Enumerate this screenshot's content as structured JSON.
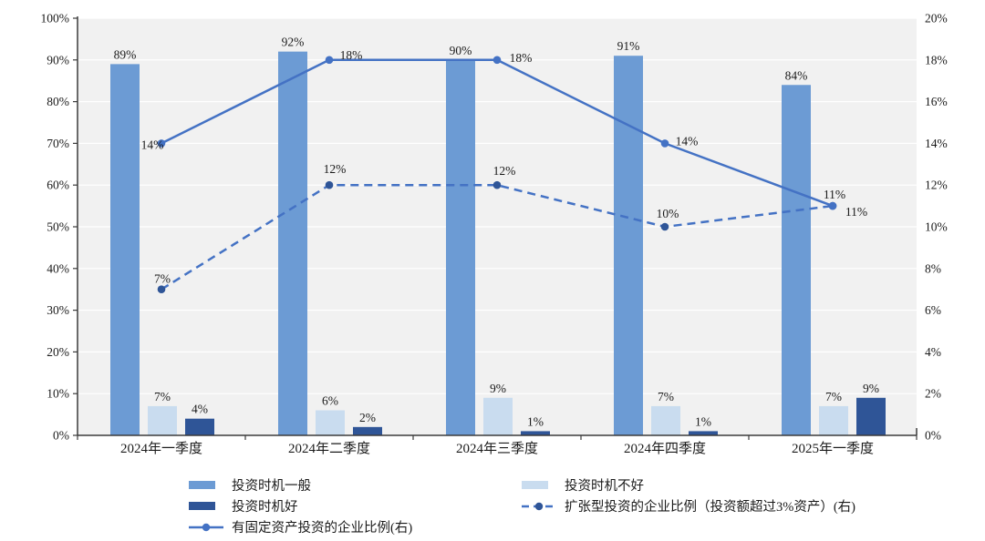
{
  "chart_data": {
    "type": "bar",
    "subtype": "combo-bar-line-dual-axis",
    "categories": [
      "2024年一季度",
      "2024年二季度",
      "2024年三季度",
      "2024年四季度",
      "2025年一季度"
    ],
    "bar_series": [
      {
        "name": "投资时机一般",
        "axis": "left",
        "color": "#6C9BD4",
        "values": [
          89,
          92,
          90,
          91,
          84
        ],
        "labels": [
          "89%",
          "92%",
          "90%",
          "91%",
          "84%"
        ]
      },
      {
        "name": "投资时机不好",
        "axis": "left",
        "color": "#C9DCEF",
        "values": [
          7,
          6,
          9,
          7,
          7
        ],
        "labels": [
          "7%",
          "6%",
          "9%",
          "7%",
          "7%"
        ]
      },
      {
        "name": "投资时机好",
        "axis": "left",
        "color": "#2F5597",
        "values": [
          4,
          2,
          1,
          1,
          9
        ],
        "labels": [
          "4%",
          "2%",
          "1%",
          "1%",
          "9%"
        ]
      }
    ],
    "line_series": [
      {
        "name": "扩张型投资的企业比例（投资额超过3%资产）(右)",
        "axis": "right",
        "style": "dashed",
        "color": "#4472C4",
        "marker_color": "#2F5597",
        "values": [
          7,
          12,
          12,
          10,
          11
        ],
        "labels": [
          "7%",
          "12%",
          "12%",
          "10%",
          "11%"
        ]
      },
      {
        "name": "有固定资产投资的企业比例(右)",
        "axis": "right",
        "style": "solid",
        "color": "#4472C4",
        "marker_color": "#4472C4",
        "values": [
          14,
          18,
          18,
          14,
          11
        ],
        "labels": [
          "14%",
          "18%",
          "18%",
          "14%",
          "11%"
        ]
      }
    ],
    "left_axis": {
      "min": 0,
      "max": 100,
      "step": 10,
      "tick_labels": [
        "0%",
        "10%",
        "20%",
        "30%",
        "40%",
        "50%",
        "60%",
        "70%",
        "80%",
        "90%",
        "100%"
      ]
    },
    "right_axis": {
      "min": 0,
      "max": 20,
      "step": 2,
      "tick_labels": [
        "0%",
        "2%",
        "4%",
        "6%",
        "8%",
        "10%",
        "12%",
        "14%",
        "16%",
        "18%",
        "20%"
      ]
    },
    "grid": true,
    "legend_position": "bottom",
    "plot_background": "#F1F1F1",
    "gridline_color": "#FFFFFF",
    "axis_color": "#3B3B3B",
    "label_color": "#1A1A1A",
    "title": "",
    "xlabel": "",
    "ylabel": ""
  },
  "legend": {
    "columns": [
      {
        "items": [
          {
            "label": "投资时机一般",
            "swatch": "bar",
            "color": "#6C9BD4"
          },
          {
            "label": "投资时机好",
            "swatch": "bar",
            "color": "#2F5597"
          },
          {
            "label": "有固定资产投资的企业比例(右)",
            "swatch": "line-solid",
            "color": "#4472C4",
            "marker_color": "#4472C4"
          }
        ]
      },
      {
        "items": [
          {
            "label": "投资时机不好",
            "swatch": "bar",
            "color": "#C9DCEF"
          },
          {
            "label": "扩张型投资的企业比例（投资额超过3%资产）(右)",
            "swatch": "line-dashed",
            "color": "#4472C4",
            "marker_color": "#2F5597"
          }
        ]
      }
    ]
  }
}
